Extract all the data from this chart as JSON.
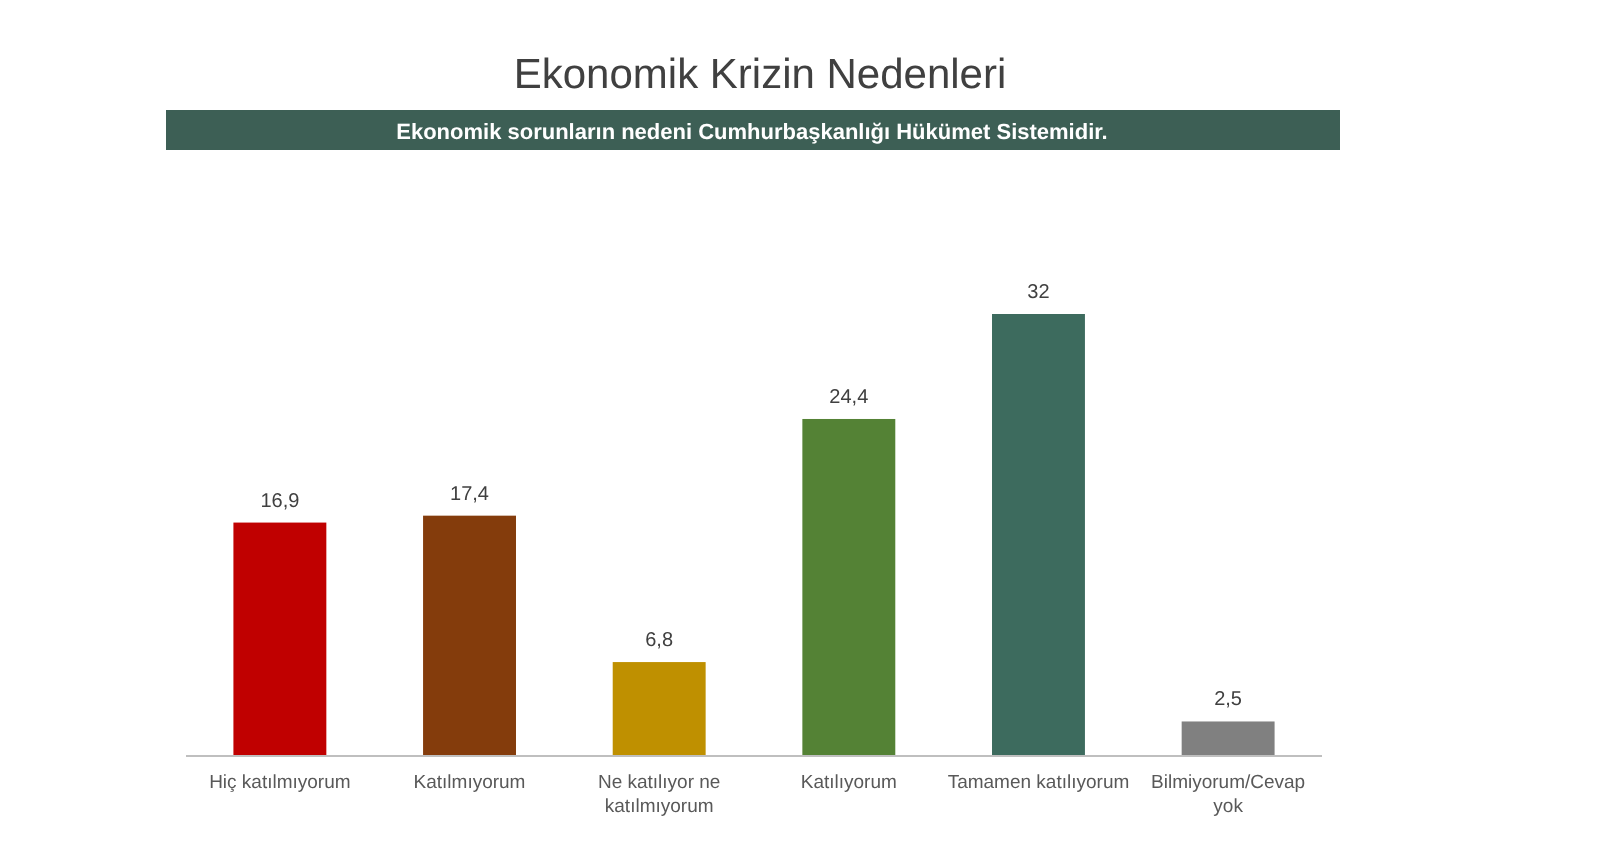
{
  "chart_data": {
    "type": "bar",
    "title": "Ekonomik Krizin Nedenleri",
    "subtitle": "Ekonomik sorunların nedeni Cumhurbaşkanlığı Hükümet Sistemidir.",
    "categories": [
      "Hiç katılmıyorum",
      "Katılmıyorum",
      "Ne katılıyor ne katılmıyorum",
      "Katılıyorum",
      "Tamamen katılıyorum",
      "Bilmiyorum/Cevap yok"
    ],
    "values": [
      16.9,
      17.4,
      6.8,
      24.4,
      32,
      2.5
    ],
    "value_labels": [
      "16,9",
      "17,4",
      "6,8",
      "24,4",
      "32",
      "2,5"
    ],
    "colors": [
      "#c00000",
      "#843c0c",
      "#bf9000",
      "#548235",
      "#3d6b5e",
      "#808080"
    ],
    "grid": false
  }
}
